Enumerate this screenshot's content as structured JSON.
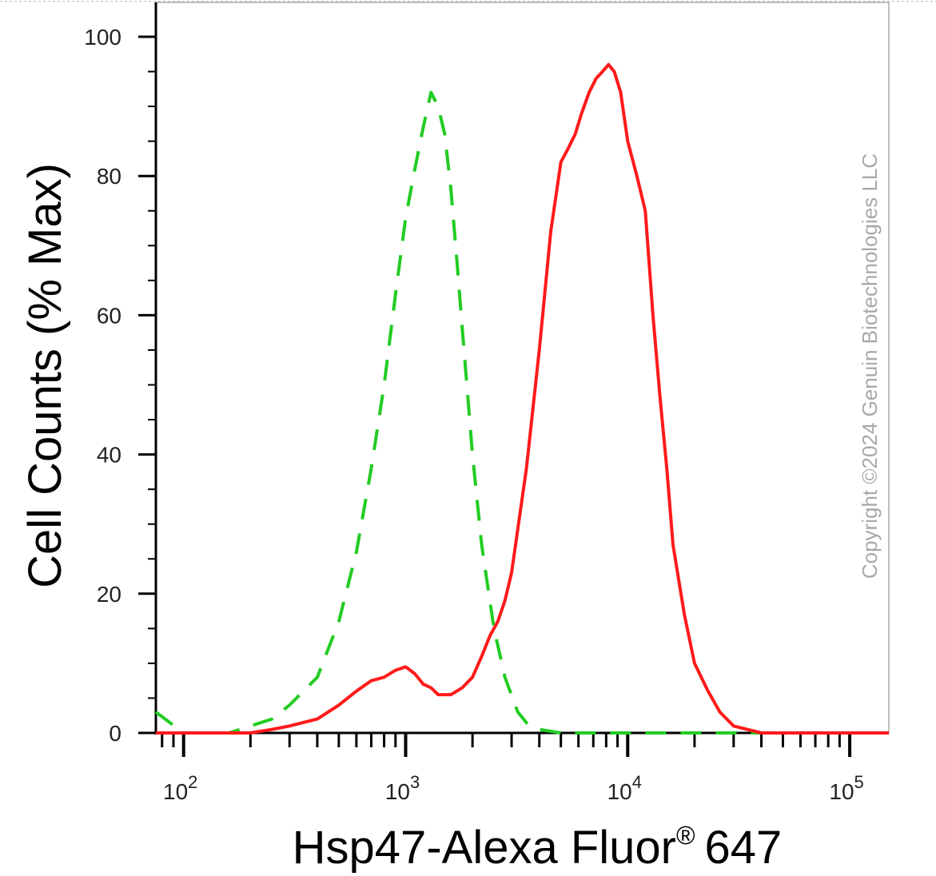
{
  "chart_data": {
    "type": "line",
    "xlabel": "Hsp47-Alexa Fluor",
    "xlabel_mark": "®",
    "xlabel_suffix": "647",
    "ylabel": "Cell Counts (% Max)",
    "x_scale": "log",
    "xlim": [
      75,
      150000
    ],
    "ylim": [
      0,
      100
    ],
    "y_ticks": [
      0,
      20,
      40,
      60,
      80,
      100
    ],
    "x_ticks": [
      {
        "value": 100,
        "base": "10",
        "exp": "2"
      },
      {
        "value": 1000,
        "base": "10",
        "exp": "3"
      },
      {
        "value": 10000,
        "base": "10",
        "exp": "4"
      },
      {
        "value": 100000,
        "base": "10",
        "exp": "5"
      }
    ],
    "grid": false,
    "watermark": "Copyright ©2024 Genuin Biotechnologies LLC",
    "series": [
      {
        "style": "dashed",
        "color": "#22cc22",
        "x": [
          75,
          100,
          130,
          160,
          200,
          250,
          300,
          400,
          500,
          600,
          700,
          800,
          900,
          1000,
          1100,
          1200,
          1300,
          1400,
          1500,
          1600,
          1700,
          1800,
          2000,
          2200,
          2500,
          2800,
          3200,
          3600,
          4000,
          5000,
          7000,
          10000,
          15000,
          30000,
          150000
        ],
        "y": [
          3,
          0,
          0,
          0,
          1,
          2,
          4,
          8,
          16,
          26,
          38,
          50,
          63,
          74,
          81,
          87,
          92,
          90,
          86,
          78,
          68,
          58,
          40,
          27,
          15,
          8,
          3,
          1,
          0.5,
          0,
          0,
          0,
          0,
          0,
          0
        ]
      },
      {
        "style": "solid",
        "color": "#ff1a1a",
        "x": [
          75,
          100,
          150,
          200,
          250,
          300,
          400,
          500,
          600,
          700,
          800,
          900,
          1000,
          1100,
          1200,
          1300,
          1400,
          1600,
          1800,
          2000,
          2200,
          2400,
          2600,
          2800,
          3000,
          3500,
          4000,
          4500,
          5000,
          5400,
          5800,
          6200,
          6700,
          7200,
          7700,
          8200,
          8700,
          9300,
          10000,
          11000,
          12000,
          13000,
          14000,
          15000,
          16000,
          18000,
          20000,
          23000,
          26000,
          30000,
          40000,
          60000,
          100000,
          150000
        ],
        "y": [
          0,
          0,
          0,
          0,
          0.5,
          1,
          2,
          4,
          6,
          7.5,
          8,
          9,
          9.5,
          8.5,
          7,
          6.5,
          5.5,
          5.5,
          6.5,
          8,
          11,
          14,
          16,
          19,
          23,
          38,
          55,
          72,
          82,
          84,
          86,
          89,
          92,
          94,
          95,
          96,
          95,
          92,
          85,
          80,
          75,
          60,
          48,
          38,
          27,
          17,
          10,
          6,
          3,
          1,
          0,
          0,
          0,
          0
        ]
      }
    ]
  }
}
